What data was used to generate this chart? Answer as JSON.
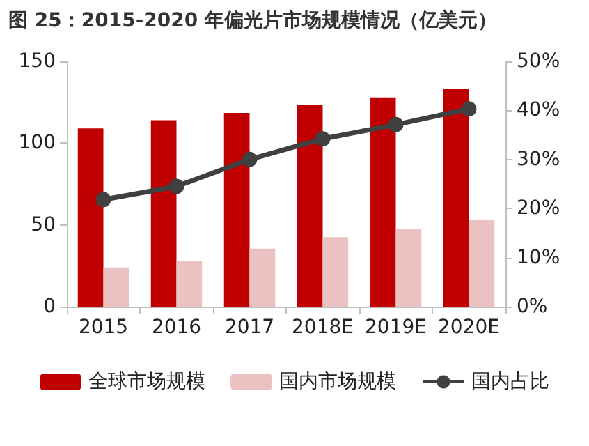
{
  "chart_data": {
    "type": "bar",
    "title": "图 25：2015-2020 年偏光片市场规模情况（亿美元）",
    "categories": [
      "2015",
      "2016",
      "2017",
      "2018E",
      "2019E",
      "2020E"
    ],
    "series": [
      {
        "name": "全球市场规模",
        "color": "#c00000",
        "values": [
          109,
          114,
          118.5,
          123.5,
          128,
          133
        ]
      },
      {
        "name": "国内市场规模",
        "color": "#ebc1c1",
        "values": [
          24,
          28,
          35.5,
          42.5,
          47.5,
          53
        ]
      },
      {
        "name": "国内占比",
        "color": "#404040",
        "type": "line",
        "axis": "y2",
        "values": [
          21.8,
          24.5,
          30,
          34.2,
          37.1,
          40.3
        ]
      }
    ],
    "ylim": [
      0,
      150
    ],
    "yticks": [
      0,
      50,
      100,
      150
    ],
    "y2lim": [
      0,
      50
    ],
    "y2ticks": [
      {
        "value": 0,
        "label": "0%"
      },
      {
        "value": 10,
        "label": "10%"
      },
      {
        "value": 20,
        "label": "20%"
      },
      {
        "value": 30,
        "label": "30%"
      },
      {
        "value": 40,
        "label": "40%"
      },
      {
        "value": 50,
        "label": "50%"
      }
    ],
    "legend": "bottom",
    "marker": "circle",
    "grid": false
  }
}
